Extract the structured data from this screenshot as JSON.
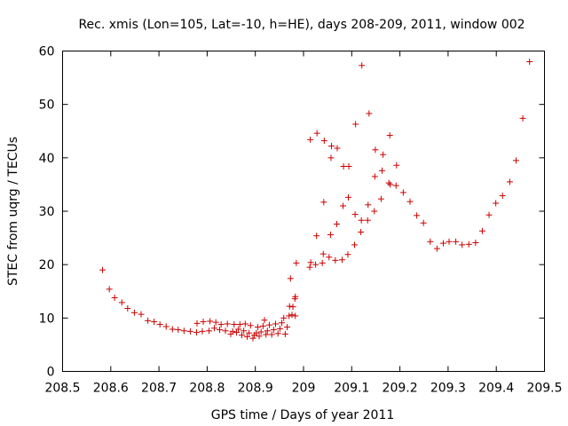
{
  "chart_data": {
    "type": "scatter",
    "title": "Rec. xmis (Lon=105, Lat=-10, h=HE), days 208-209, 2011, window 002",
    "xlabel": "GPS time / Days of year 2011",
    "ylabel": "STEC from uqrg / TECUs",
    "xlim": [
      208.5,
      209.5
    ],
    "ylim": [
      0,
      60
    ],
    "x_ticks": [
      "208.5",
      "208.6",
      "208.7",
      "208.8",
      "208.9",
      "209",
      "209.1",
      "209.2",
      "209.3",
      "209.4",
      "209.5"
    ],
    "y_ticks": [
      "0",
      "10",
      "20",
      "30",
      "40",
      "50",
      "60"
    ],
    "grid": false,
    "marker": "plus",
    "color": "#cc0000",
    "series": [
      {
        "name": "STEC",
        "points": [
          [
            208.583,
            19.0
          ],
          [
            208.597,
            15.4
          ],
          [
            208.608,
            13.8
          ],
          [
            208.623,
            12.9
          ],
          [
            208.635,
            11.8
          ],
          [
            208.649,
            11.0
          ],
          [
            208.663,
            10.7
          ],
          [
            208.677,
            9.5
          ],
          [
            208.69,
            9.3
          ],
          [
            208.702,
            8.8
          ],
          [
            208.715,
            8.4
          ],
          [
            208.728,
            7.9
          ],
          [
            208.74,
            7.8
          ],
          [
            208.752,
            7.6
          ],
          [
            208.765,
            7.5
          ],
          [
            208.778,
            7.3
          ],
          [
            208.779,
            9.0
          ],
          [
            208.79,
            7.5
          ],
          [
            208.792,
            9.3
          ],
          [
            208.804,
            7.6
          ],
          [
            208.806,
            9.4
          ],
          [
            208.815,
            8.1
          ],
          [
            208.818,
            9.2
          ],
          [
            208.826,
            7.8
          ],
          [
            208.829,
            8.8
          ],
          [
            208.838,
            7.6
          ],
          [
            208.842,
            8.9
          ],
          [
            208.849,
            7.0
          ],
          [
            208.853,
            7.5
          ],
          [
            208.856,
            8.8
          ],
          [
            208.861,
            7.3
          ],
          [
            208.865,
            7.9
          ],
          [
            208.868,
            8.8
          ],
          [
            208.872,
            6.8
          ],
          [
            208.876,
            7.6
          ],
          [
            208.879,
            8.9
          ],
          [
            208.883,
            6.5
          ],
          [
            208.887,
            7.2
          ],
          [
            208.89,
            8.6
          ],
          [
            208.895,
            6.2
          ],
          [
            208.898,
            6.8
          ],
          [
            208.902,
            7.2
          ],
          [
            208.905,
            8.3
          ],
          [
            208.908,
            6.6
          ],
          [
            208.912,
            7.4
          ],
          [
            208.916,
            8.5
          ],
          [
            208.919,
            9.6
          ],
          [
            208.922,
            6.9
          ],
          [
            208.925,
            7.6
          ],
          [
            208.929,
            8.7
          ],
          [
            208.934,
            6.9
          ],
          [
            208.938,
            7.8
          ],
          [
            208.942,
            8.9
          ],
          [
            208.947,
            7.1
          ],
          [
            208.951,
            8.0
          ],
          [
            208.955,
            9.1
          ],
          [
            208.959,
            10.0
          ],
          [
            208.962,
            7.0
          ],
          [
            208.966,
            8.3
          ],
          [
            208.97,
            10.4
          ],
          [
            208.971,
            12.2
          ],
          [
            208.973,
            17.4
          ],
          [
            208.976,
            10.6
          ],
          [
            208.978,
            12.1
          ],
          [
            208.982,
            13.6
          ],
          [
            208.983,
            14.0
          ],
          [
            208.985,
            20.3
          ],
          [
            208.983,
            10.4
          ],
          [
            209.013,
            19.5
          ],
          [
            209.015,
            20.4
          ],
          [
            209.014,
            43.4
          ],
          [
            209.025,
            20.0
          ],
          [
            209.027,
            25.4
          ],
          [
            209.028,
            44.6
          ],
          [
            209.039,
            20.3
          ],
          [
            209.041,
            22.0
          ],
          [
            209.042,
            31.7
          ],
          [
            209.043,
            43.2
          ],
          [
            209.053,
            21.4
          ],
          [
            209.056,
            25.6
          ],
          [
            209.057,
            40.0
          ],
          [
            209.058,
            42.2
          ],
          [
            209.066,
            20.8
          ],
          [
            209.069,
            27.6
          ],
          [
            209.07,
            41.8
          ],
          [
            209.08,
            20.9
          ],
          [
            209.082,
            31.0
          ],
          [
            209.083,
            38.4
          ],
          [
            209.092,
            21.9
          ],
          [
            209.093,
            32.6
          ],
          [
            209.094,
            38.4
          ],
          [
            209.106,
            23.7
          ],
          [
            209.107,
            29.4
          ],
          [
            209.108,
            46.3
          ],
          [
            209.119,
            26.1
          ],
          [
            209.12,
            28.3
          ],
          [
            209.121,
            57.3
          ],
          [
            209.133,
            28.3
          ],
          [
            209.134,
            31.2
          ],
          [
            209.136,
            48.3
          ],
          [
            209.147,
            30.0
          ],
          [
            209.148,
            36.5
          ],
          [
            209.149,
            41.5
          ],
          [
            209.161,
            32.3
          ],
          [
            209.163,
            37.6
          ],
          [
            209.165,
            40.6
          ],
          [
            209.177,
            35.3
          ],
          [
            209.179,
            44.2
          ],
          [
            209.18,
            35.0
          ],
          [
            209.192,
            34.8
          ],
          [
            209.193,
            38.6
          ],
          [
            209.207,
            33.5
          ],
          [
            209.221,
            31.8
          ],
          [
            209.235,
            29.2
          ],
          [
            209.249,
            27.8
          ],
          [
            209.263,
            24.3
          ],
          [
            209.277,
            23.0
          ],
          [
            209.29,
            24.0
          ],
          [
            209.302,
            24.3
          ],
          [
            209.316,
            24.3
          ],
          [
            209.329,
            23.7
          ],
          [
            209.343,
            23.8
          ],
          [
            209.357,
            24.1
          ],
          [
            209.371,
            26.3
          ],
          [
            209.385,
            29.3
          ],
          [
            209.399,
            31.5
          ],
          [
            209.413,
            32.9
          ],
          [
            209.428,
            35.5
          ],
          [
            209.441,
            39.5
          ],
          [
            209.455,
            47.4
          ],
          [
            209.469,
            58.0
          ]
        ]
      }
    ]
  }
}
